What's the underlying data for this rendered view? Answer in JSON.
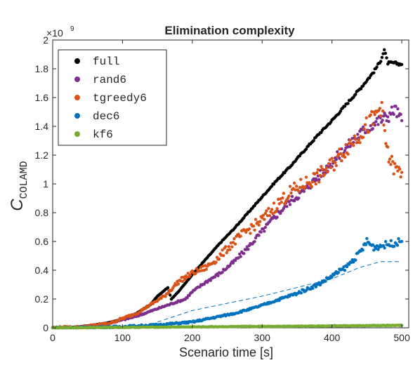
{
  "chart_data": {
    "type": "scatter",
    "title": "Elimination complexity",
    "xlabel": "Scenario time [s]",
    "ylabel_main": "C",
    "ylabel_sub": "COLAMD",
    "exponent_label": "×10",
    "exponent_power": "9",
    "xlim": [
      0,
      510
    ],
    "ylim": [
      0,
      2
    ],
    "xticks": [
      0,
      100,
      200,
      300,
      400,
      500
    ],
    "xtick_labels": [
      "0",
      "100",
      "200",
      "300",
      "400",
      "500"
    ],
    "yticks": [
      0,
      0.2,
      0.4,
      0.6,
      0.8,
      1,
      1.2,
      1.4,
      1.6,
      1.8,
      2
    ],
    "ytick_labels": [
      "0",
      "0.2",
      "0.4",
      "0.6",
      "0.8",
      "1",
      "1.2",
      "1.4",
      "1.6",
      "1.8",
      "2"
    ],
    "legend_position": "top-left",
    "grid": false,
    "series": [
      {
        "name": "full",
        "color": "#000000",
        "points": [
          [
            0,
            0
          ],
          [
            20,
            0.002
          ],
          [
            40,
            0.008
          ],
          [
            60,
            0.02
          ],
          [
            80,
            0.035
          ],
          [
            100,
            0.06
          ],
          [
            120,
            0.1
          ],
          [
            140,
            0.16
          ],
          [
            150,
            0.22
          ],
          [
            160,
            0.26
          ],
          [
            165,
            0.28
          ],
          [
            170,
            0.2
          ],
          [
            180,
            0.25
          ],
          [
            190,
            0.31
          ],
          [
            200,
            0.37
          ],
          [
            220,
            0.48
          ],
          [
            240,
            0.59
          ],
          [
            260,
            0.69
          ],
          [
            280,
            0.8
          ],
          [
            300,
            0.91
          ],
          [
            320,
            1.02
          ],
          [
            340,
            1.12
          ],
          [
            360,
            1.23
          ],
          [
            380,
            1.34
          ],
          [
            400,
            1.44
          ],
          [
            420,
            1.55
          ],
          [
            440,
            1.66
          ],
          [
            460,
            1.78
          ],
          [
            470,
            1.86
          ],
          [
            475,
            1.93
          ],
          [
            480,
            1.84
          ],
          [
            490,
            1.84
          ],
          [
            500,
            1.83
          ]
        ]
      },
      {
        "name": "rand6",
        "color": "#7e2f8e",
        "points": [
          [
            0,
            0
          ],
          [
            40,
            0.005
          ],
          [
            80,
            0.03
          ],
          [
            120,
            0.08
          ],
          [
            160,
            0.15
          ],
          [
            190,
            0.2
          ],
          [
            200,
            0.25
          ],
          [
            220,
            0.32
          ],
          [
            240,
            0.38
          ],
          [
            260,
            0.46
          ],
          [
            280,
            0.56
          ],
          [
            300,
            0.67
          ],
          [
            320,
            0.78
          ],
          [
            340,
            0.88
          ],
          [
            360,
            0.95
          ],
          [
            380,
            1.05
          ],
          [
            400,
            1.15
          ],
          [
            420,
            1.25
          ],
          [
            440,
            1.35
          ],
          [
            460,
            1.42
          ],
          [
            480,
            1.47
          ],
          [
            490,
            1.52
          ],
          [
            500,
            1.44
          ]
        ]
      },
      {
        "name": "tgreedy6",
        "color": "#d95319",
        "points": [
          [
            0,
            0
          ],
          [
            40,
            0.005
          ],
          [
            80,
            0.03
          ],
          [
            120,
            0.1
          ],
          [
            160,
            0.22
          ],
          [
            180,
            0.32
          ],
          [
            200,
            0.38
          ],
          [
            220,
            0.42
          ],
          [
            240,
            0.5
          ],
          [
            260,
            0.6
          ],
          [
            280,
            0.68
          ],
          [
            300,
            0.75
          ],
          [
            320,
            0.85
          ],
          [
            340,
            0.94
          ],
          [
            360,
            1.0
          ],
          [
            380,
            1.05
          ],
          [
            400,
            1.13
          ],
          [
            420,
            1.25
          ],
          [
            440,
            1.35
          ],
          [
            460,
            1.45
          ],
          [
            470,
            1.55
          ],
          [
            480,
            1.2
          ],
          [
            490,
            1.1
          ],
          [
            500,
            1.08
          ]
        ]
      },
      {
        "name": "dec6",
        "color": "#0072bd",
        "points": [
          [
            0,
            0
          ],
          [
            50,
            0.002
          ],
          [
            100,
            0.008
          ],
          [
            150,
            0.02
          ],
          [
            200,
            0.04
          ],
          [
            230,
            0.07
          ],
          [
            260,
            0.1
          ],
          [
            290,
            0.14
          ],
          [
            320,
            0.19
          ],
          [
            350,
            0.24
          ],
          [
            380,
            0.3
          ],
          [
            400,
            0.36
          ],
          [
            420,
            0.42
          ],
          [
            440,
            0.52
          ],
          [
            450,
            0.6
          ],
          [
            460,
            0.56
          ],
          [
            480,
            0.58
          ],
          [
            500,
            0.6
          ]
        ]
      },
      {
        "name": "kf6",
        "color": "#77ac30",
        "points": [
          [
            0,
            0
          ],
          [
            100,
            0.003
          ],
          [
            200,
            0.006
          ],
          [
            300,
            0.01
          ],
          [
            400,
            0.013
          ],
          [
            500,
            0.017
          ]
        ]
      }
    ],
    "dashed_series": {
      "color": "#0072bd",
      "points": [
        [
          150,
          0.04
        ],
        [
          200,
          0.12
        ],
        [
          250,
          0.17
        ],
        [
          300,
          0.22
        ],
        [
          350,
          0.28
        ],
        [
          400,
          0.34
        ],
        [
          440,
          0.42
        ],
        [
          470,
          0.46
        ],
        [
          500,
          0.46
        ]
      ]
    }
  }
}
